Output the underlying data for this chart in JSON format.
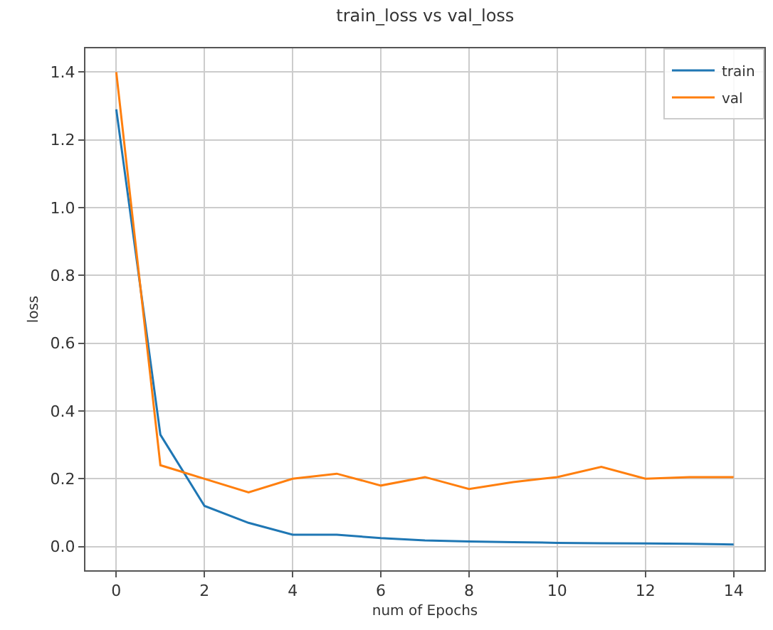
{
  "chart_data": {
    "type": "line",
    "title": "train_loss vs val_loss",
    "xlabel": "num of Epochs",
    "ylabel": "loss",
    "x": [
      0,
      1,
      2,
      3,
      4,
      5,
      6,
      7,
      8,
      9,
      10,
      11,
      12,
      13,
      14
    ],
    "series": [
      {
        "name": "train",
        "color": "#1f77b4",
        "values": [
          1.29,
          0.33,
          0.12,
          0.07,
          0.035,
          0.035,
          0.025,
          0.018,
          0.015,
          0.013,
          0.011,
          0.01,
          0.009,
          0.008,
          0.006
        ]
      },
      {
        "name": "val",
        "color": "#ff7f0e",
        "values": [
          1.4,
          0.24,
          0.2,
          0.16,
          0.2,
          0.215,
          0.18,
          0.205,
          0.17,
          0.19,
          0.205,
          0.235,
          0.2,
          0.205,
          0.205
        ]
      }
    ],
    "xlim": [
      -0.7,
      14.7
    ],
    "xticks": [
      0,
      2,
      4,
      6,
      8,
      10,
      12,
      14
    ],
    "ylim": [
      -0.07,
      1.47
    ],
    "yticks": [
      {
        "value": 0,
        "label": "0.0"
      },
      0.2,
      0.4,
      0.6,
      0.8,
      {
        "value": 1,
        "label": "1.0"
      },
      1.2,
      1.4
    ],
    "grid": true,
    "legend": "top right",
    "marker": "none",
    "line_style": "solid"
  }
}
